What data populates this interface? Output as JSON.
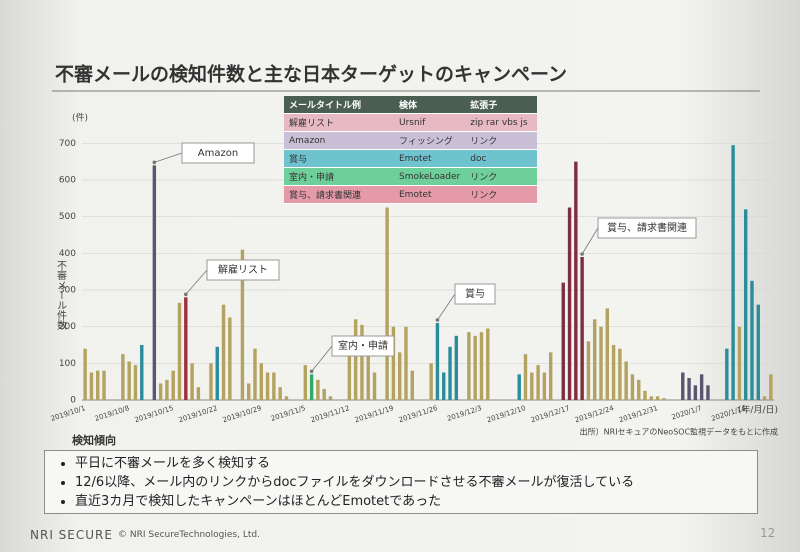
{
  "chart_data": {
    "type": "bar",
    "title": "不審メールの検知件数と主な日本ターゲットのキャンペーン",
    "y_unit": "(件)",
    "y_label": "不審メール件数",
    "x_unit": "(年/月/日)",
    "source": "出所）NRIセキュアのNeoSOC監視データをもとに作成",
    "categories": [
      "2019/10/1",
      null,
      null,
      null,
      null,
      null,
      null,
      "2019/10/8",
      null,
      null,
      null,
      null,
      null,
      null,
      "2019/10/15",
      null,
      null,
      null,
      null,
      null,
      null,
      "2019/10/22",
      null,
      null,
      null,
      null,
      null,
      null,
      "2019/10/29",
      null,
      null,
      null,
      null,
      null,
      null,
      "2019/11/5",
      null,
      null,
      null,
      null,
      null,
      null,
      "2019/11/12",
      null,
      null,
      null,
      null,
      null,
      null,
      "2019/11/19",
      null,
      null,
      null,
      null,
      null,
      null,
      "2019/11/26",
      null,
      null,
      null,
      null,
      null,
      null,
      "2019/12/3",
      null,
      null,
      null,
      null,
      null,
      null,
      "2019/12/10",
      null,
      null,
      null,
      null,
      null,
      null,
      "2019/12/17",
      null,
      null,
      null,
      null,
      null,
      null,
      "2019/12/24",
      null,
      null,
      null,
      null,
      null,
      null,
      "2019/12/31",
      null,
      null,
      null,
      null,
      null,
      null,
      "2020/1/7",
      null,
      null,
      null,
      null,
      null,
      null,
      "2020/1/14",
      null,
      null,
      null,
      null
    ],
    "values": [
      140,
      75,
      80,
      80,
      null,
      null,
      125,
      105,
      95,
      150,
      null,
      640,
      45,
      55,
      80,
      265,
      280,
      100,
      35,
      null,
      100,
      145,
      260,
      225,
      null,
      410,
      45,
      140,
      100,
      75,
      75,
      35,
      10,
      null,
      null,
      95,
      70,
      55,
      30,
      10,
      null,
      null,
      140,
      220,
      205,
      150,
      75,
      null,
      525,
      200,
      130,
      200,
      80,
      null,
      null,
      100,
      210,
      75,
      145,
      175,
      null,
      185,
      175,
      185,
      195,
      null,
      null,
      null,
      null,
      70,
      125,
      75,
      95,
      75,
      130,
      null,
      320,
      525,
      650,
      390,
      160,
      220,
      200,
      250,
      150,
      140,
      105,
      70,
      55,
      25,
      10,
      10,
      5,
      null,
      null,
      75,
      60,
      40,
      70,
      40,
      null,
      null,
      140,
      695,
      200,
      520,
      325,
      260,
      10,
      70
    ],
    "colors": [
      "#b3a260",
      "#b3a260",
      "#b3a260",
      "#b3a260",
      null,
      null,
      "#b3a260",
      "#b3a260",
      "#b3a260",
      "#2b8c9c",
      null,
      "#5a5670",
      "#b3a260",
      "#b3a260",
      "#b3a260",
      "#b3a260",
      "#9c3040",
      "#b3a260",
      "#b3a260",
      null,
      "#b3a260",
      "#2b8c9c",
      "#b3a260",
      "#b3a260",
      null,
      "#b3a260",
      "#b3a260",
      "#b3a260",
      "#b3a260",
      "#b3a260",
      "#b3a260",
      "#b3a260",
      "#b3a260",
      null,
      null,
      "#b3a260",
      "#33a86b",
      "#b3a260",
      "#b3a260",
      "#b3a260",
      null,
      null,
      "#b3a260",
      "#b3a260",
      "#b3a260",
      "#b3a260",
      "#b3a260",
      null,
      "#b3a260",
      "#b3a260",
      "#b3a260",
      "#b3a260",
      "#b3a260",
      null,
      null,
      "#b3a260",
      "#2b8c9c",
      "#2b8c9c",
      "#2b8c9c",
      "#2b8c9c",
      null,
      "#b3a260",
      "#b3a260",
      "#b3a260",
      "#b3a260",
      null,
      null,
      null,
      null,
      "#2b8c9c",
      "#b3a260",
      "#b3a260",
      "#b3a260",
      "#b3a260",
      "#b3a260",
      null,
      "#7e2e40",
      "#7e2e40",
      "#7e2e40",
      "#7e2e40",
      "#b3a260",
      "#b3a260",
      "#b3a260",
      "#b3a260",
      "#b3a260",
      "#b3a260",
      "#b3a260",
      "#b3a260",
      "#b3a260",
      "#b3a260",
      "#b3a260",
      "#b3a260",
      "#b3a260",
      null,
      null,
      "#5a5670",
      "#5a5670",
      "#5a5670",
      "#5a5670",
      "#5a5670",
      null,
      null,
      "#2b8c9c",
      "#2b8c9c",
      "#b3a260",
      "#2b8c9c",
      "#2b8c9c",
      "#2b8c9c",
      "#b3a260",
      "#b3a260"
    ],
    "ylim": [
      0,
      750
    ],
    "yticks": [
      0,
      100,
      200,
      300,
      400,
      500,
      600,
      700
    ],
    "annotations": [
      "Amazon",
      "解雇リスト",
      "室内・申請",
      "賞与",
      "賞与、請求書関連"
    ],
    "legend_table": {
      "header": [
        "メールタイトル例",
        "検体",
        "拡張子"
      ],
      "rows": [
        [
          "解雇リスト",
          "Ursnif",
          "zip rar vbs js"
        ],
        [
          "Amazon",
          "フィッシング",
          "リンク"
        ],
        [
          "賞与",
          "Emotet",
          "doc"
        ],
        [
          "室内・申請",
          "SmokeLoader",
          "リンク"
        ],
        [
          "賞与、請求書関連",
          "Emotet",
          "リンク"
        ]
      ]
    }
  },
  "findings": {
    "heading": "検知傾向",
    "bullets": [
      "平日に不審メールを多く検知する",
      "12/6以降、メール内のリンクからdocファイルをダウンロードさせる不審メールが復活している",
      "直近3カ月で検知したキャンペーンはほとんどEmotetであった"
    ]
  },
  "footer": {
    "logo": "NRI SECURE",
    "copyright": "© NRI SecureTechnologies, Ltd.",
    "page": "12"
  }
}
